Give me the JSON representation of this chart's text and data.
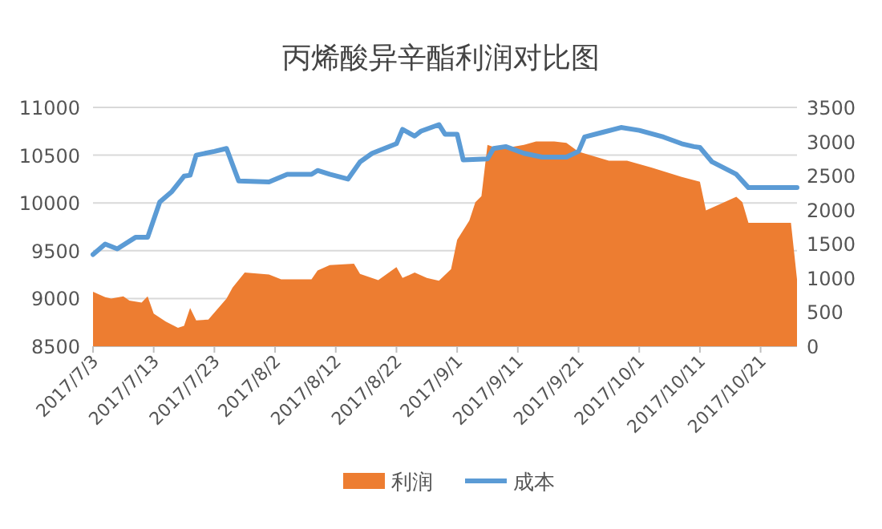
{
  "chart_data": {
    "type": "line",
    "title": "丙烯酸异辛酯利润对比图",
    "xlim": [
      "2017-07-03",
      "2017-10-27"
    ],
    "xticks": [
      {
        "value": "2017-07-03",
        "label": "2017/7/3"
      },
      {
        "value": "2017-07-13",
        "label": "2017/7/13"
      },
      {
        "value": "2017-07-23",
        "label": "2017/7/23"
      },
      {
        "value": "2017-08-02",
        "label": "2017/8/2"
      },
      {
        "value": "2017-08-12",
        "label": "2017/8/12"
      },
      {
        "value": "2017-08-22",
        "label": "2017/8/22"
      },
      {
        "value": "2017-09-01",
        "label": "2017/9/1"
      },
      {
        "value": "2017-09-11",
        "label": "2017/9/11"
      },
      {
        "value": "2017-09-21",
        "label": "2017/9/21"
      },
      {
        "value": "2017-10-01",
        "label": "2017/10/1"
      },
      {
        "value": "2017-10-11",
        "label": "2017/10/11"
      },
      {
        "value": "2017-10-21",
        "label": "2017/10/21"
      }
    ],
    "ylim": [
      8500,
      11000
    ],
    "yticks": [
      8500,
      9000,
      9500,
      10000,
      10500,
      11000
    ],
    "y2lim": [
      0,
      3500
    ],
    "y2ticks": [
      0,
      500,
      1000,
      1500,
      2000,
      2500,
      3000,
      3500
    ],
    "grid": "y",
    "legend": "bottom",
    "series": [
      {
        "name": "利润",
        "type": "area",
        "axis": "y2",
        "color": "#ed7d31",
        "x": [
          "2017-07-03",
          "2017-07-05",
          "2017-07-06",
          "2017-07-08",
          "2017-07-09",
          "2017-07-11",
          "2017-07-12",
          "2017-07-13",
          "2017-07-15",
          "2017-07-17",
          "2017-07-18",
          "2017-07-19",
          "2017-07-20",
          "2017-07-22",
          "2017-07-25",
          "2017-07-26",
          "2017-07-28",
          "2017-08-01",
          "2017-08-03",
          "2017-08-08",
          "2017-08-09",
          "2017-08-11",
          "2017-08-15",
          "2017-08-16",
          "2017-08-19",
          "2017-08-22",
          "2017-08-23",
          "2017-08-25",
          "2017-08-27",
          "2017-08-29",
          "2017-08-31",
          "2017-09-01",
          "2017-09-03",
          "2017-09-04",
          "2017-09-05",
          "2017-09-06",
          "2017-09-08",
          "2017-09-12",
          "2017-09-14",
          "2017-09-17",
          "2017-09-19",
          "2017-09-21",
          "2017-09-26",
          "2017-09-29",
          "2017-10-03",
          "2017-10-08",
          "2017-10-11",
          "2017-10-12",
          "2017-10-14",
          "2017-10-17",
          "2017-10-18",
          "2017-10-19",
          "2017-10-26",
          "2017-10-27"
        ],
        "values": [
          800,
          720,
          700,
          730,
          670,
          640,
          730,
          480,
          360,
          270,
          300,
          560,
          380,
          390,
          700,
          860,
          1080,
          1050,
          980,
          980,
          1110,
          1190,
          1210,
          1060,
          970,
          1160,
          1000,
          1080,
          1000,
          960,
          1130,
          1560,
          1840,
          2110,
          2200,
          2950,
          2890,
          2950,
          3000,
          3000,
          2980,
          2850,
          2720,
          2720,
          2620,
          2480,
          2410,
          1990,
          2070,
          2190,
          2110,
          1810,
          1810,
          980
        ]
      },
      {
        "name": "成本",
        "color": "#5b9bd5",
        "x": [
          "2017-07-03",
          "2017-07-05",
          "2017-07-07",
          "2017-07-10",
          "2017-07-12",
          "2017-07-14",
          "2017-07-16",
          "2017-07-18",
          "2017-07-19",
          "2017-07-20",
          "2017-07-23",
          "2017-07-25",
          "2017-07-27",
          "2017-08-01",
          "2017-08-04",
          "2017-08-08",
          "2017-08-09",
          "2017-08-11",
          "2017-08-14",
          "2017-08-16",
          "2017-08-18",
          "2017-08-22",
          "2017-08-23",
          "2017-08-25",
          "2017-08-26",
          "2017-08-29",
          "2017-08-30",
          "2017-09-01",
          "2017-09-02",
          "2017-09-06",
          "2017-09-07",
          "2017-09-09",
          "2017-09-12",
          "2017-09-15",
          "2017-09-19",
          "2017-09-21",
          "2017-09-22",
          "2017-09-25",
          "2017-09-28",
          "2017-10-01",
          "2017-10-05",
          "2017-10-08",
          "2017-10-10",
          "2017-10-11",
          "2017-10-13",
          "2017-10-17",
          "2017-10-19",
          "2017-10-22",
          "2017-10-27"
        ],
        "values": [
          9460,
          9570,
          9520,
          9640,
          9640,
          10010,
          10120,
          10280,
          10290,
          10500,
          10540,
          10570,
          10230,
          10220,
          10300,
          10300,
          10340,
          10300,
          10250,
          10430,
          10520,
          10620,
          10770,
          10700,
          10750,
          10820,
          10720,
          10720,
          10450,
          10460,
          10570,
          10590,
          10520,
          10480,
          10480,
          10540,
          10690,
          10740,
          10790,
          10760,
          10690,
          10620,
          10590,
          10580,
          10430,
          10300,
          10160,
          10160,
          10160
        ]
      }
    ]
  }
}
